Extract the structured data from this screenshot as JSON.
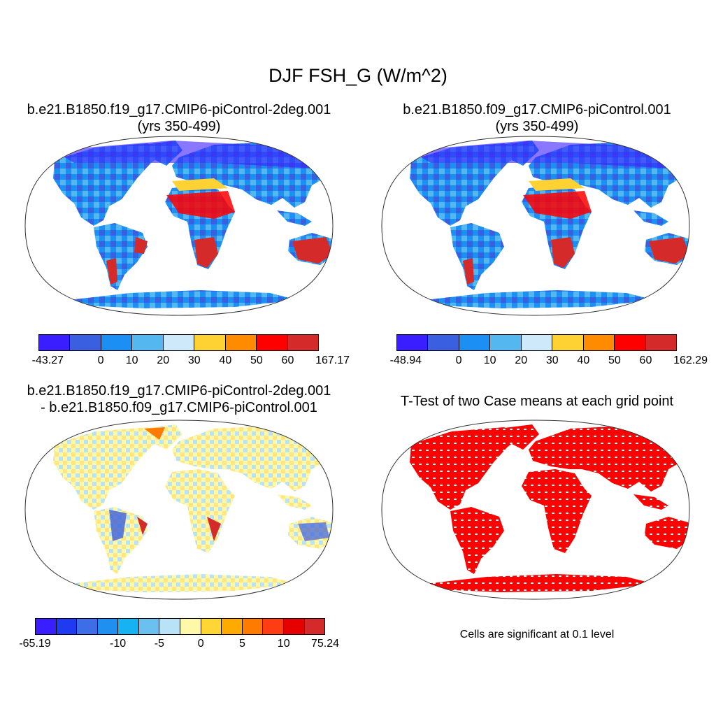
{
  "main_title": "DJF FSH_G (W/m^2)",
  "panels": [
    {
      "title": "b.e21.B1850.f19_g17.CMIP6-piControl-2deg.001\n(yrs 350-499)",
      "colorbar": {
        "colors": [
          "#3b1eff",
          "#3a5fe0",
          "#1c8ff5",
          "#55b7f0",
          "#cde9fa",
          "#ffd233",
          "#ff8c00",
          "#ff0000",
          "#d42a2a"
        ],
        "labels": [
          "-43.27",
          "0",
          "10",
          "20",
          "30",
          "40",
          "50",
          "60",
          "167.17"
        ]
      }
    },
    {
      "title": "b.e21.B1850.f09_g17.CMIP6-piControl.001\n(yrs 350-499)",
      "colorbar": {
        "colors": [
          "#3b1eff",
          "#3a5fe0",
          "#1c8ff5",
          "#55b7f0",
          "#cde9fa",
          "#ffd233",
          "#ff8c00",
          "#ff0000",
          "#d42a2a"
        ],
        "labels": [
          "-48.94",
          "0",
          "10",
          "20",
          "30",
          "40",
          "50",
          "60",
          "162.29"
        ]
      }
    },
    {
      "title": "b.e21.B1850.f19_g17.CMIP6-piControl-2deg.001\n- b.e21.B1850.f09_g17.CMIP6-piControl.001",
      "colorbar": {
        "colors": [
          "#3b1eff",
          "#1e3bf0",
          "#3d6ee8",
          "#1f8ff2",
          "#16b2f2",
          "#6ac1ef",
          "#b8e2f5",
          "#fff8a8",
          "#ffd633",
          "#ffaa00",
          "#ff7a00",
          "#ff3c14",
          "#e60000",
          "#d42a2a"
        ],
        "labels": [
          "-65.19",
          "-10",
          "-5",
          "0",
          "5",
          "10",
          "75.24"
        ]
      }
    },
    {
      "title": "T-Test of two Case means at each grid point",
      "note": "Cells are significant at 0.1 level"
    }
  ]
}
